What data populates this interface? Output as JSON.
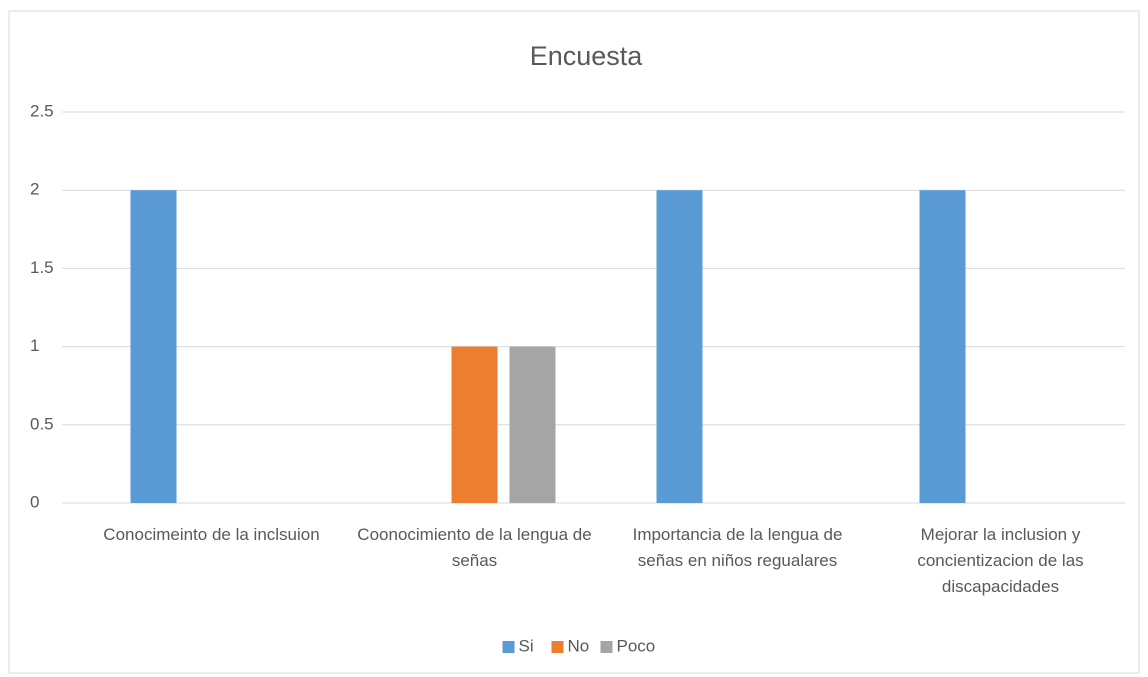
{
  "chart_data": {
    "type": "bar",
    "title": "Encuesta",
    "categories": [
      "Conocimeinto de la inclsuion",
      "Coonocimiento de la lengua de señas",
      "Importancia de la lengua de señas en niños regualares",
      "Mejorar la inclusion y concientizacion de las discapacidades"
    ],
    "series": [
      {
        "name": "Si",
        "color": "#5b9bd5",
        "values": [
          2,
          0,
          2,
          2
        ]
      },
      {
        "name": "No",
        "color": "#ed7d31",
        "values": [
          0,
          1,
          0,
          0
        ]
      },
      {
        "name": "Poco",
        "color": "#a5a5a5",
        "values": [
          0,
          1,
          0,
          0
        ]
      }
    ],
    "ylim": [
      0,
      2.5
    ],
    "yticks": [
      0,
      0.5,
      1,
      1.5,
      2,
      2.5
    ],
    "grid": true,
    "legend": "bottom"
  }
}
